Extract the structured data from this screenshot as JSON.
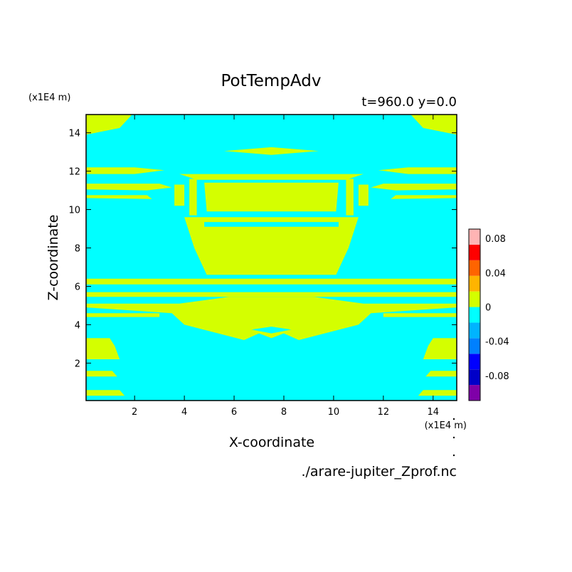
{
  "chart_data": {
    "type": "heatmap",
    "title": "PotTempAdv",
    "subtitle": "t=960.0 y=0.0",
    "xlabel": "X-coordinate",
    "ylabel": "Z-coordinate",
    "x_unit": "(x1E4 m)",
    "y_unit": "(x1E4 m)",
    "footer": "./arare-jupiter_Zprof.nc",
    "xlim": [
      0.05,
      14.95
    ],
    "ylim": [
      0.05,
      14.95
    ],
    "x_ticks": [
      2,
      4,
      6,
      8,
      10,
      12,
      14
    ],
    "y_ticks": [
      2,
      4,
      6,
      8,
      10,
      12,
      14
    ],
    "levels": [
      -0.1,
      -0.08,
      -0.06,
      -0.04,
      -0.02,
      0,
      0.02,
      0.04,
      0.06,
      0.08,
      0.1
    ],
    "colors": [
      "#7f00a8",
      "#0000c8",
      "#0000ff",
      "#0080ff",
      "#00b4ff",
      "#00ffff",
      "#d4ff00",
      "#ffb400",
      "#ff6400",
      "#ff0000",
      "#ffb4b4"
    ],
    "colorbar_labels": [
      "0.08",
      "0.04",
      "0",
      "-0.04",
      "-0.08"
    ],
    "colorbar_label_values": [
      0.08,
      0.04,
      0,
      -0.04,
      -0.08
    ],
    "background_color": "#00ffff",
    "positive_region_color": "#d4ff00",
    "positive_regions": [
      [
        [
          0.05,
          14.95
        ],
        [
          1.9,
          14.95
        ],
        [
          1.4,
          14.25
        ],
        [
          0.05,
          13.9
        ]
      ],
      [
        [
          14.95,
          14.95
        ],
        [
          13.1,
          14.95
        ],
        [
          13.6,
          14.25
        ],
        [
          14.95,
          13.9
        ]
      ],
      [
        [
          5.6,
          13.05
        ],
        [
          7.5,
          13.25
        ],
        [
          9.4,
          13.05
        ],
        [
          7.5,
          12.85
        ]
      ],
      [
        [
          0.05,
          12.2
        ],
        [
          2.0,
          12.2
        ],
        [
          3.2,
          12.05
        ],
        [
          2.0,
          11.85
        ],
        [
          0.05,
          11.85
        ]
      ],
      [
        [
          14.95,
          12.2
        ],
        [
          13.0,
          12.2
        ],
        [
          11.8,
          12.05
        ],
        [
          13.0,
          11.85
        ],
        [
          14.95,
          11.85
        ]
      ],
      [
        [
          0.05,
          11.35
        ],
        [
          3.0,
          11.35
        ],
        [
          3.5,
          11.15
        ],
        [
          2.5,
          11.0
        ],
        [
          0.05,
          11.05
        ]
      ],
      [
        [
          14.95,
          11.35
        ],
        [
          12.0,
          11.35
        ],
        [
          11.5,
          11.15
        ],
        [
          12.5,
          11.0
        ],
        [
          14.95,
          11.05
        ]
      ],
      [
        [
          0.05,
          10.75
        ],
        [
          2.5,
          10.75
        ],
        [
          2.7,
          10.55
        ],
        [
          0.05,
          10.6
        ]
      ],
      [
        [
          14.95,
          10.75
        ],
        [
          12.5,
          10.75
        ],
        [
          12.3,
          10.55
        ],
        [
          14.95,
          10.6
        ]
      ],
      [
        [
          3.8,
          11.85
        ],
        [
          11.2,
          11.85
        ],
        [
          10.5,
          11.55
        ],
        [
          4.5,
          11.55
        ]
      ],
      [
        [
          4.8,
          11.4
        ],
        [
          10.2,
          11.4
        ],
        [
          10.1,
          9.9
        ],
        [
          4.9,
          9.9
        ]
      ],
      [
        [
          4.2,
          11.6
        ],
        [
          4.5,
          11.6
        ],
        [
          4.5,
          9.7
        ],
        [
          4.2,
          9.7
        ]
      ],
      [
        [
          10.5,
          11.6
        ],
        [
          10.8,
          11.6
        ],
        [
          10.8,
          9.7
        ],
        [
          10.5,
          9.7
        ]
      ],
      [
        [
          3.6,
          11.3
        ],
        [
          4.0,
          11.3
        ],
        [
          4.0,
          10.2
        ],
        [
          3.6,
          10.2
        ]
      ],
      [
        [
          11.0,
          11.3
        ],
        [
          11.4,
          11.3
        ],
        [
          11.4,
          10.2
        ],
        [
          11.0,
          10.2
        ]
      ],
      [
        [
          4.0,
          9.6
        ],
        [
          11.0,
          9.6
        ],
        [
          10.6,
          8.0
        ],
        [
          10.1,
          6.6
        ],
        [
          4.9,
          6.6
        ],
        [
          4.4,
          8.0
        ]
      ],
      [
        [
          0.05,
          6.4
        ],
        [
          14.95,
          6.4
        ],
        [
          14.95,
          6.1
        ],
        [
          0.05,
          6.1
        ]
      ],
      [
        [
          0.05,
          5.7
        ],
        [
          14.95,
          5.7
        ],
        [
          14.95,
          5.45
        ],
        [
          0.05,
          5.45
        ]
      ],
      [
        [
          0.05,
          5.1
        ],
        [
          3.8,
          5.1
        ],
        [
          5.8,
          5.45
        ],
        [
          9.2,
          5.45
        ],
        [
          11.2,
          5.1
        ],
        [
          14.95,
          5.1
        ],
        [
          14.95,
          4.9
        ],
        [
          11.5,
          4.6
        ],
        [
          11.0,
          4.0
        ],
        [
          9.5,
          3.5
        ],
        [
          8.6,
          3.2
        ],
        [
          8.0,
          3.55
        ],
        [
          7.5,
          3.3
        ],
        [
          7.0,
          3.55
        ],
        [
          6.4,
          3.2
        ],
        [
          5.5,
          3.5
        ],
        [
          4.0,
          4.0
        ],
        [
          3.5,
          4.6
        ],
        [
          0.05,
          4.9
        ]
      ],
      [
        [
          0.05,
          4.6
        ],
        [
          3.0,
          4.6
        ],
        [
          3.0,
          4.4
        ],
        [
          0.05,
          4.4
        ]
      ],
      [
        [
          14.95,
          4.6
        ],
        [
          12.0,
          4.6
        ],
        [
          12.0,
          4.4
        ],
        [
          14.95,
          4.4
        ]
      ],
      [
        [
          0.05,
          3.3
        ],
        [
          1.0,
          3.3
        ],
        [
          1.2,
          2.9
        ],
        [
          1.4,
          2.2
        ],
        [
          0.05,
          2.2
        ]
      ],
      [
        [
          14.95,
          3.3
        ],
        [
          14.0,
          3.3
        ],
        [
          13.8,
          2.9
        ],
        [
          13.6,
          2.2
        ],
        [
          14.95,
          2.2
        ]
      ],
      [
        [
          0.05,
          1.6
        ],
        [
          1.1,
          1.6
        ],
        [
          1.3,
          1.3
        ],
        [
          0.05,
          1.3
        ]
      ],
      [
        [
          14.95,
          1.6
        ],
        [
          13.9,
          1.6
        ],
        [
          13.7,
          1.3
        ],
        [
          14.95,
          1.3
        ]
      ],
      [
        [
          0.05,
          0.6
        ],
        [
          1.4,
          0.6
        ],
        [
          1.6,
          0.3
        ],
        [
          0.05,
          0.3
        ]
      ],
      [
        [
          14.95,
          0.6
        ],
        [
          13.6,
          0.6
        ],
        [
          13.4,
          0.3
        ],
        [
          14.95,
          0.3
        ]
      ]
    ],
    "negative_regions": [
      [
        [
          6.7,
          3.75
        ],
        [
          7.5,
          3.9
        ],
        [
          8.3,
          3.75
        ],
        [
          7.5,
          3.55
        ]
      ],
      [
        [
          4.8,
          9.35
        ],
        [
          10.2,
          9.35
        ],
        [
          10.2,
          9.1
        ],
        [
          4.8,
          9.1
        ]
      ]
    ]
  }
}
